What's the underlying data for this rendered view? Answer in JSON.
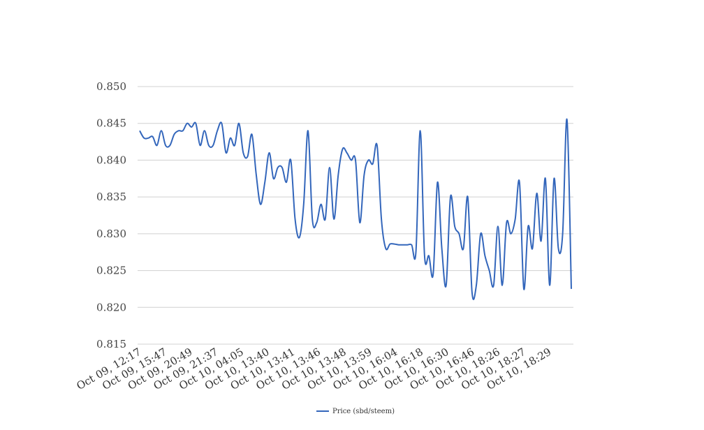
{
  "chart_data": {
    "type": "line",
    "title": "",
    "xlabel": "",
    "ylabel": "",
    "ylim": [
      0.815,
      0.85
    ],
    "yticks": [
      "0.850",
      "0.845",
      "0.840",
      "0.835",
      "0.830",
      "0.825",
      "0.820",
      "0.815"
    ],
    "grid": true,
    "legend_position": "bottom",
    "x_tick_labels": [
      "Oct 09, 12:17",
      "Oct 09, 15:47",
      "Oct 09, 20:49",
      "Oct 09, 21:37",
      "Oct 10, 04:05",
      "Oct 10, 13:40",
      "Oct 10, 13:41",
      "Oct 10, 13:46",
      "Oct 10, 13:48",
      "Oct 10, 13:59",
      "Oct 10, 16:04",
      "Oct 10, 16:18",
      "Oct 10, 16:30",
      "Oct 10, 16:46",
      "Oct 10, 18:26",
      "Oct 10, 18:27",
      "Oct 10, 18:29"
    ],
    "series": [
      {
        "name": "Price (sbd/steem)",
        "color": "#3366bb",
        "values": [
          0.844,
          0.843,
          0.843,
          0.8432,
          0.842,
          0.844,
          0.842,
          0.842,
          0.8435,
          0.844,
          0.844,
          0.845,
          0.8445,
          0.845,
          0.842,
          0.844,
          0.842,
          0.842,
          0.844,
          0.845,
          0.841,
          0.843,
          0.842,
          0.845,
          0.841,
          0.8405,
          0.8435,
          0.838,
          0.834,
          0.837,
          0.841,
          0.8375,
          0.839,
          0.839,
          0.837,
          0.84,
          0.832,
          0.8295,
          0.834,
          0.844,
          0.832,
          0.8315,
          0.834,
          0.832,
          0.839,
          0.832,
          0.838,
          0.8415,
          0.841,
          0.84,
          0.84,
          0.8315,
          0.838,
          0.84,
          0.8395,
          0.842,
          0.832,
          0.828,
          0.8286,
          0.8286,
          0.8285,
          0.8285,
          0.8285,
          0.8285,
          0.8275,
          0.844,
          0.827,
          0.827,
          0.8245,
          0.837,
          0.828,
          0.823,
          0.835,
          0.831,
          0.83,
          0.828,
          0.835,
          0.822,
          0.823,
          0.83,
          0.827,
          0.825,
          0.823,
          0.831,
          0.823,
          0.8315,
          0.83,
          0.832,
          0.837,
          0.8225,
          0.831,
          0.828,
          0.8355,
          0.829,
          0.8375,
          0.823,
          0.8375,
          0.828,
          0.83,
          0.8455,
          0.8225
        ]
      }
    ]
  }
}
